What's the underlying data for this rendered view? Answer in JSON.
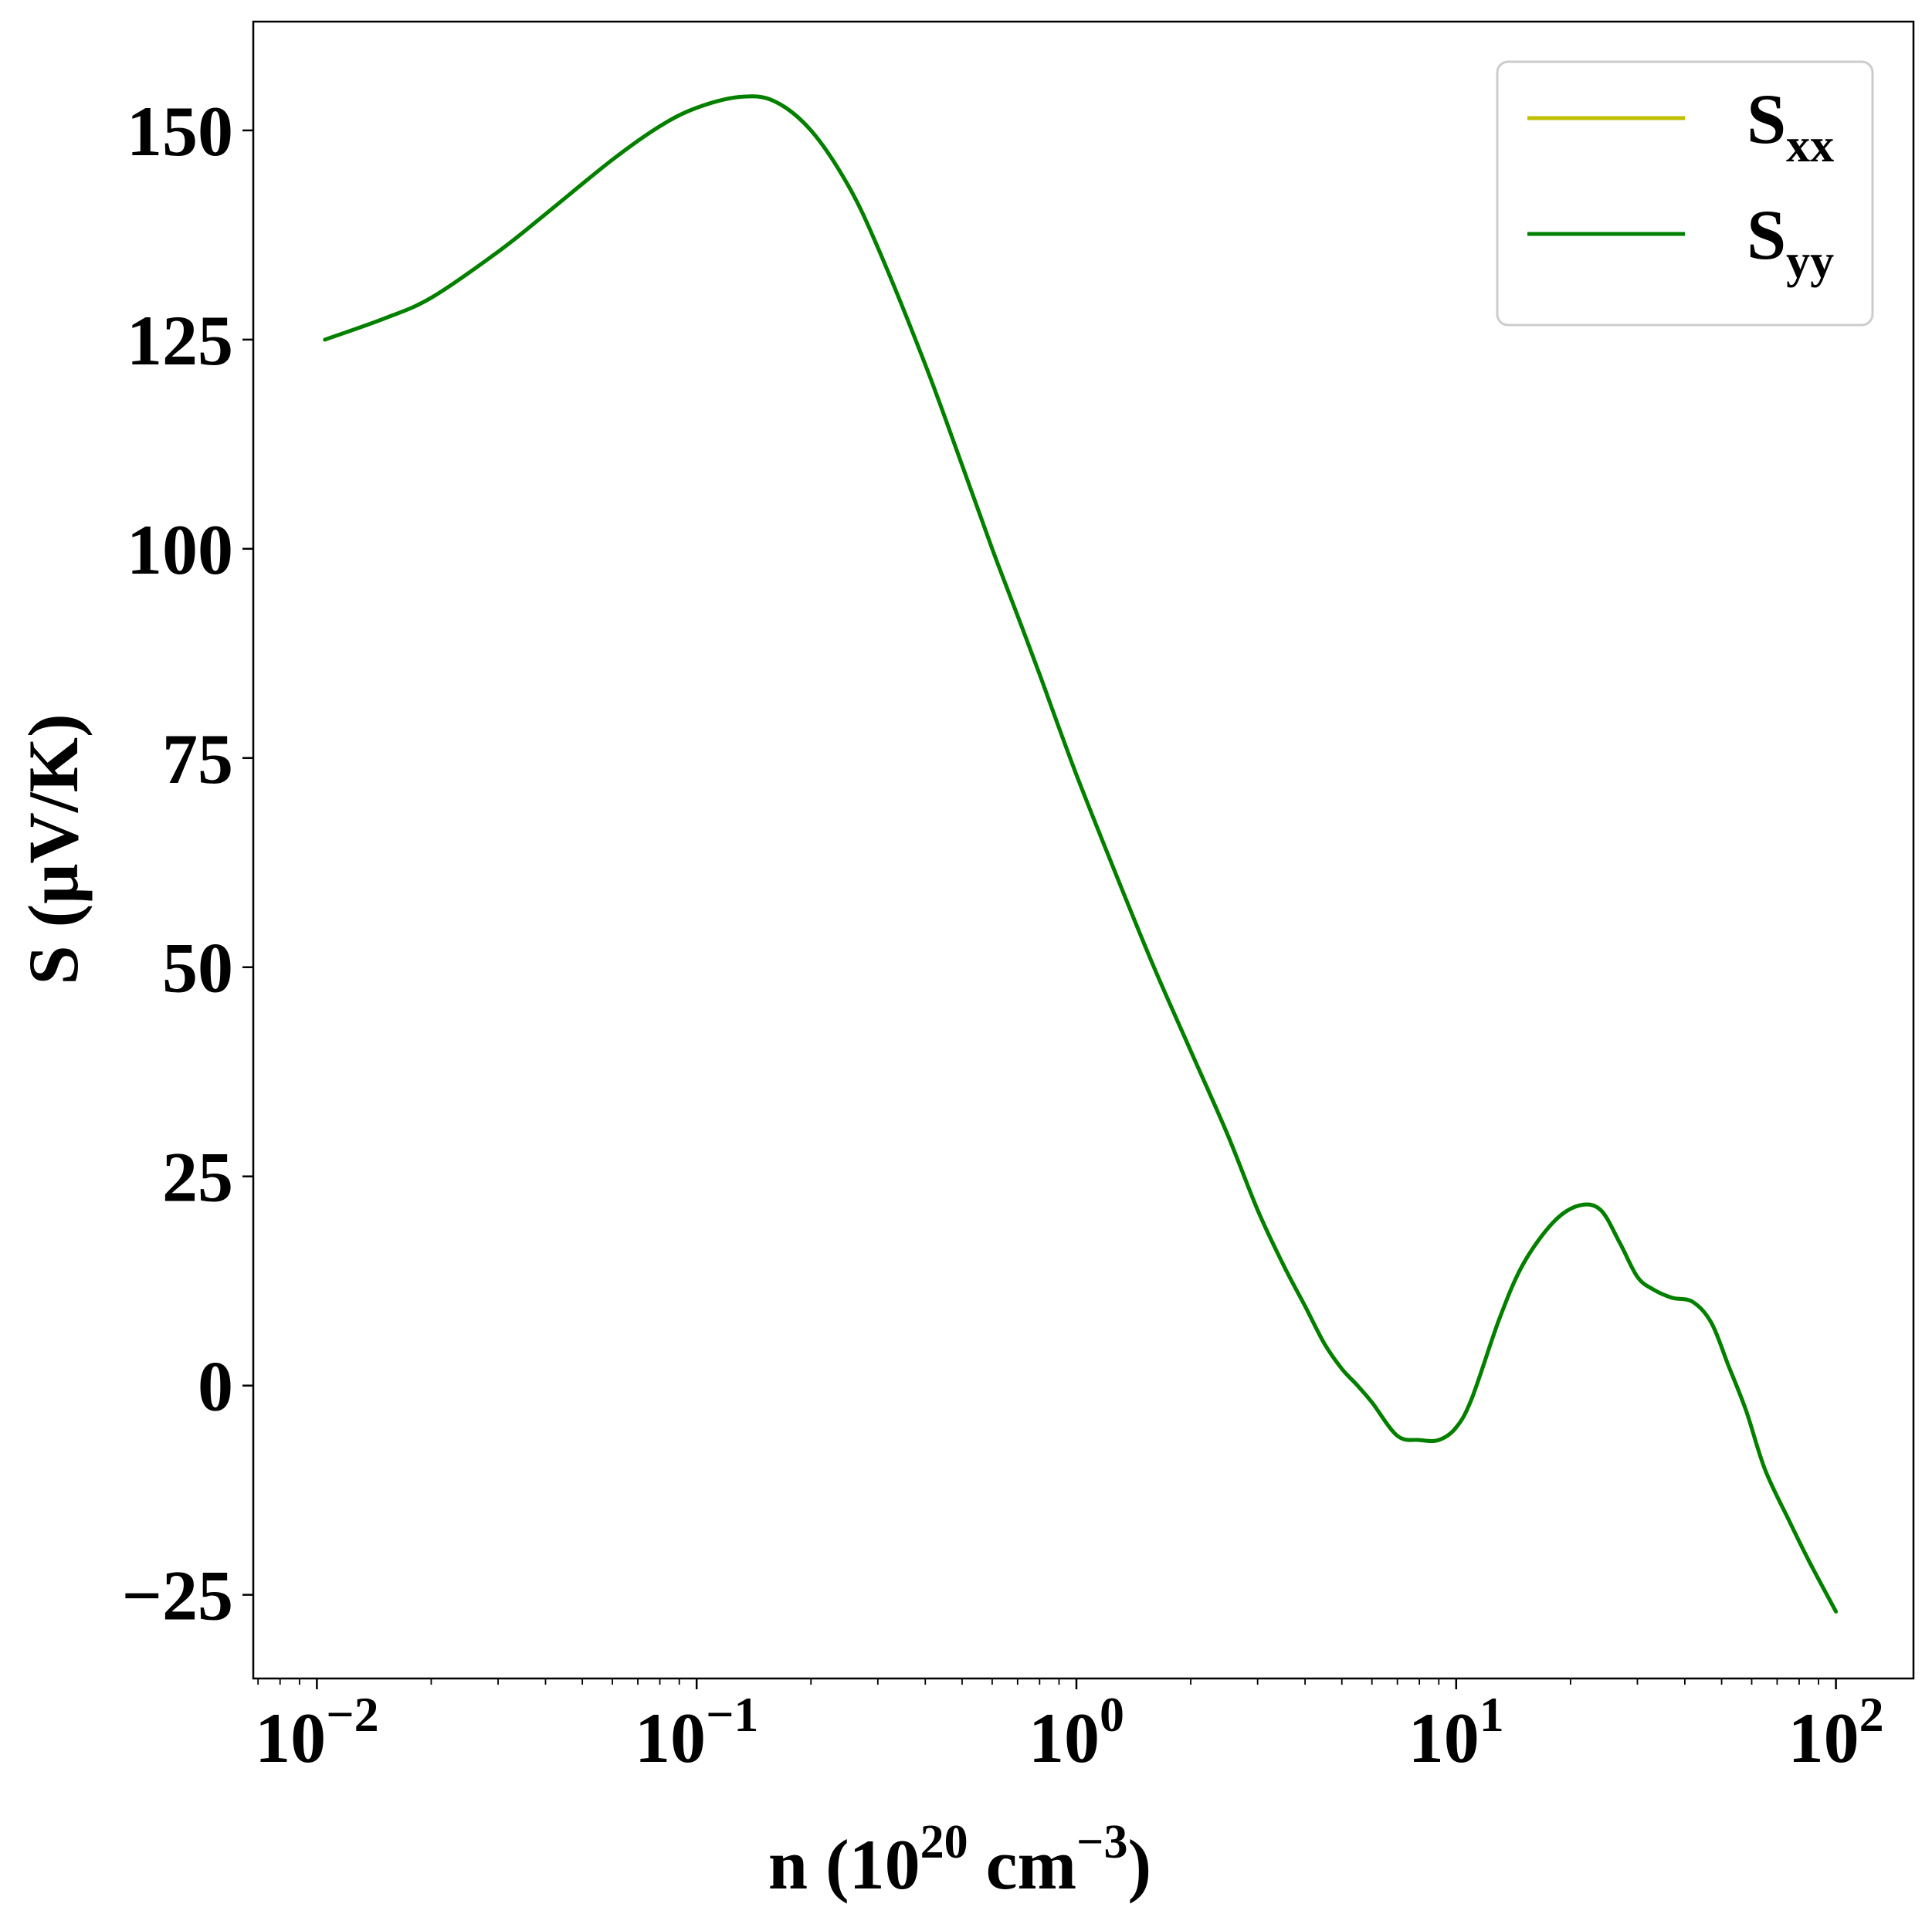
{
  "chart_data": {
    "type": "line",
    "title": "",
    "xlabel": {
      "base": "n (10",
      "exp1": "20",
      "mid": " cm",
      "exp2": "−3",
      "end": ")"
    },
    "ylabel": "S (μV/K)",
    "xscale": "log",
    "xlim": [
      0.0068,
      160
    ],
    "ylim": [
      -35,
      163
    ],
    "x_ticks": [
      {
        "value": 0.01,
        "base": "10",
        "exp": "−2"
      },
      {
        "value": 0.1,
        "base": "10",
        "exp": "−1"
      },
      {
        "value": 1,
        "base": "10",
        "exp": "0"
      },
      {
        "value": 10,
        "base": "10",
        "exp": "1"
      },
      {
        "value": 100,
        "base": "10",
        "exp": "2"
      }
    ],
    "y_ticks": [
      {
        "value": -25,
        "label": "−25"
      },
      {
        "value": 0,
        "label": "0"
      },
      {
        "value": 25,
        "label": "25"
      },
      {
        "value": 50,
        "label": "50"
      },
      {
        "value": 75,
        "label": "75"
      },
      {
        "value": 100,
        "label": "100"
      },
      {
        "value": 125,
        "label": "125"
      },
      {
        "value": 150,
        "label": "150"
      }
    ],
    "grid": false,
    "legend_position": "top-right",
    "series": [
      {
        "name": {
          "base": "S",
          "sub": "xx"
        },
        "color": "#bfbf00",
        "x": [
          0.0105,
          0.015,
          0.02,
          0.03,
          0.04,
          0.06,
          0.08,
          0.1,
          0.13,
          0.16,
          0.2,
          0.25,
          0.3,
          0.4,
          0.5,
          0.6,
          0.7,
          0.8,
          1.0,
          1.3,
          1.6,
          2.0,
          2.5,
          3.0,
          3.5,
          4.0,
          4.5,
          5.0,
          5.5,
          6.0,
          7.0,
          8.0,
          9.0,
          10,
          11,
          13,
          15,
          18,
          21,
          24,
          27,
          30,
          33,
          37,
          42,
          47,
          52,
          58,
          65,
          75,
          85,
          100
        ],
        "y": [
          125,
          127.5,
          130,
          135.5,
          140,
          146.5,
          150.5,
          152.7,
          154,
          153.5,
          150,
          143.5,
          136,
          122,
          110,
          100,
          92,
          85,
          73,
          60,
          50,
          40,
          30,
          21,
          14.5,
          9.5,
          5,
          2,
          0,
          -2,
          -6,
          -6.5,
          -6.5,
          -5,
          -1.5,
          8,
          14.5,
          19.5,
          21.5,
          21,
          17,
          13,
          11.5,
          10.5,
          10,
          7.5,
          2.5,
          -3,
          -10,
          -16,
          -21,
          -27
        ]
      },
      {
        "name": {
          "base": "S",
          "sub": "yy"
        },
        "color": "#008000",
        "x": [
          0.0105,
          0.015,
          0.02,
          0.03,
          0.04,
          0.06,
          0.08,
          0.1,
          0.13,
          0.16,
          0.2,
          0.25,
          0.3,
          0.4,
          0.5,
          0.6,
          0.7,
          0.8,
          1.0,
          1.3,
          1.6,
          2.0,
          2.5,
          3.0,
          3.5,
          4.0,
          4.5,
          5.0,
          5.5,
          6.0,
          7.0,
          8.0,
          9.0,
          10,
          11,
          13,
          15,
          18,
          21,
          24,
          27,
          30,
          33,
          37,
          42,
          47,
          52,
          58,
          65,
          75,
          85,
          100
        ],
        "y": [
          125,
          127.5,
          130,
          135.5,
          140,
          146.5,
          150.5,
          152.7,
          154,
          153.5,
          150,
          143.5,
          136,
          122,
          110,
          100,
          92,
          85,
          73,
          60,
          50,
          40,
          30,
          21,
          14.5,
          9.5,
          5,
          2,
          0,
          -2,
          -6,
          -6.5,
          -6.5,
          -5,
          -1.5,
          8,
          14.5,
          19.5,
          21.5,
          21,
          17,
          13,
          11.5,
          10.5,
          10,
          7.5,
          2.5,
          -3,
          -10,
          -16,
          -21,
          -27
        ]
      }
    ]
  }
}
